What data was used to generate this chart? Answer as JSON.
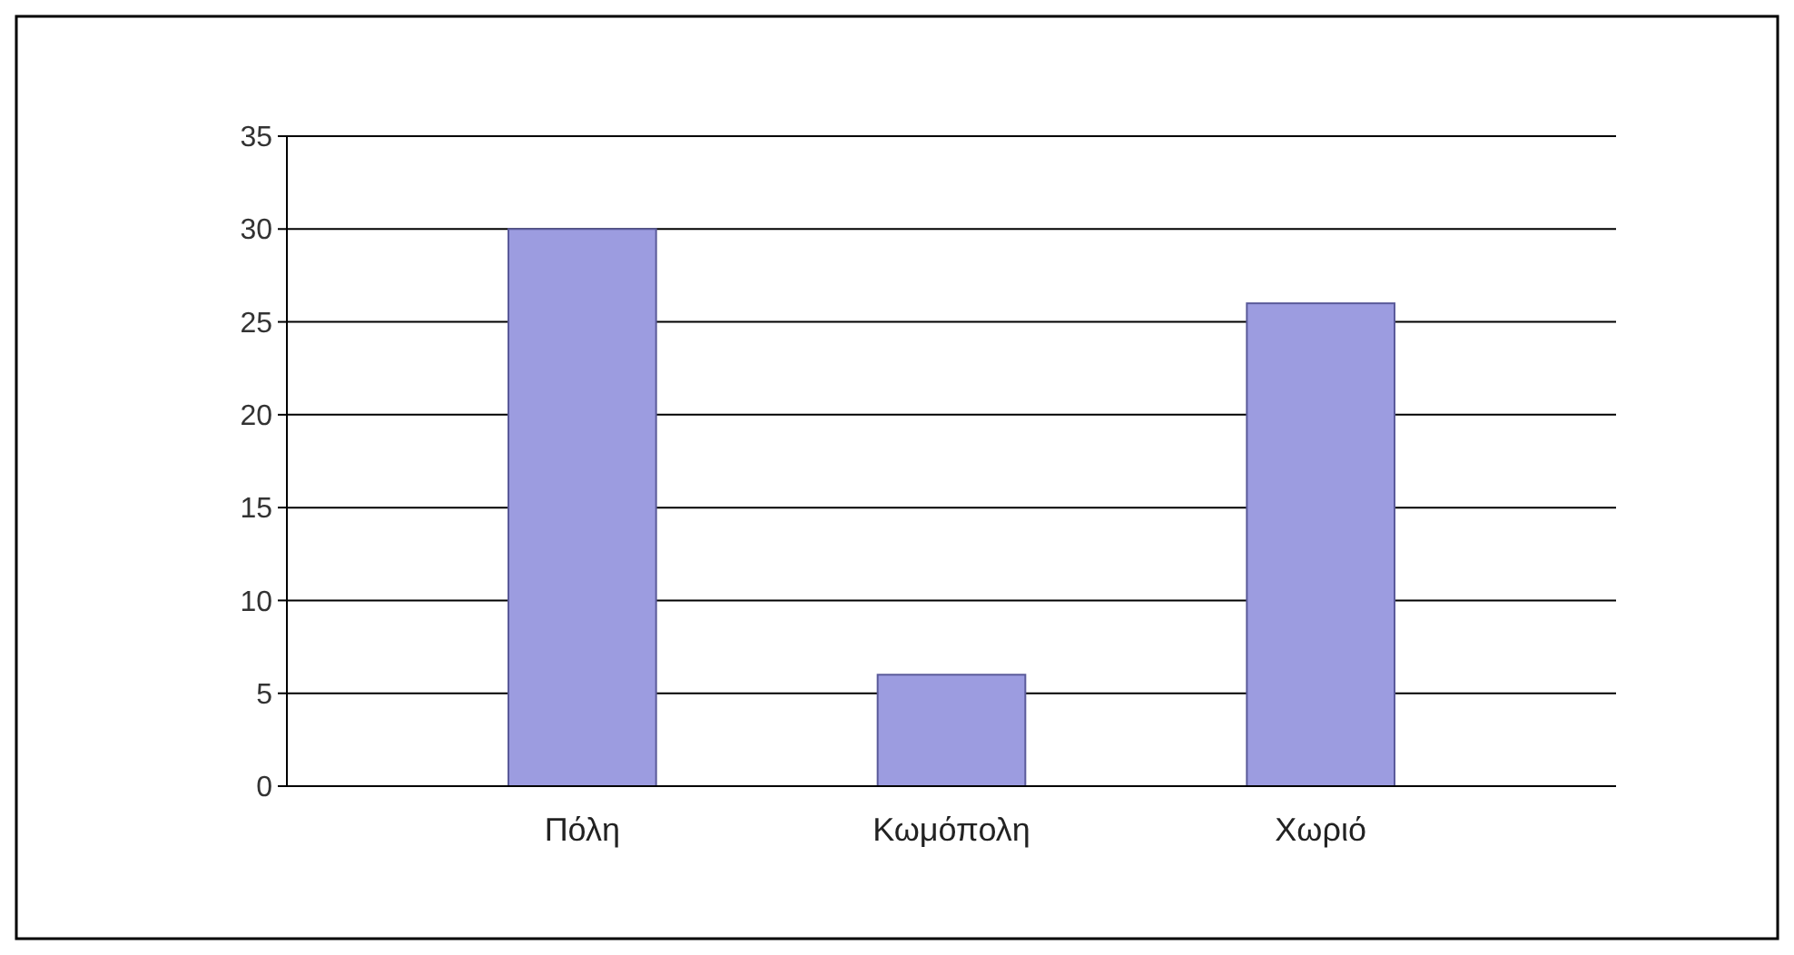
{
  "chart_data": {
    "type": "bar",
    "categories": [
      "Πόλη",
      "Κωμόπολη",
      "Χωριό"
    ],
    "values": [
      30,
      6,
      26
    ],
    "color": "#9c9ce0",
    "ylim": [
      0,
      35
    ],
    "yticks": [
      0,
      5,
      10,
      15,
      20,
      25,
      30,
      35
    ],
    "grid": "y"
  }
}
